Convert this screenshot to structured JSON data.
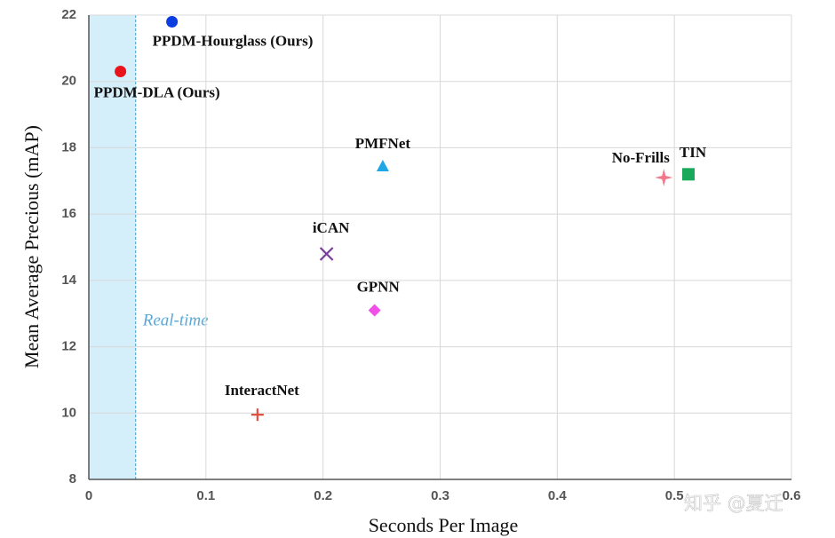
{
  "chart_data": {
    "type": "scatter",
    "xlabel": "Seconds Per Image",
    "ylabel": "Mean Average Precious (mAP)",
    "xlim": [
      0,
      0.6
    ],
    "ylim": [
      8,
      22
    ],
    "xticks": [
      0,
      0.1,
      0.2,
      0.3,
      0.4,
      0.5,
      0.6
    ],
    "yticks": [
      8,
      10,
      12,
      14,
      16,
      18,
      20,
      22
    ],
    "grid": true,
    "region": {
      "label": "Real-time",
      "x": [
        0,
        0.04
      ],
      "color": "#d4eefa"
    },
    "series": [
      {
        "name": "PPDM-Hourglass (Ours)",
        "color": "#0b3de0",
        "marker": "circle",
        "x": [
          0.071
        ],
        "values": [
          21.8
        ]
      },
      {
        "name": "PPDM-DLA (Ours)",
        "color": "#e8141c",
        "marker": "circle",
        "x": [
          0.027
        ],
        "values": [
          20.3
        ]
      },
      {
        "name": "PMFNet",
        "color": "#1ea6e6",
        "marker": "triangle",
        "x": [
          0.251
        ],
        "values": [
          17.45
        ]
      },
      {
        "name": "TIN",
        "color": "#1aa85a",
        "marker": "square",
        "x": [
          0.512
        ],
        "values": [
          17.2
        ]
      },
      {
        "name": "No-Frills",
        "color": "#f07a8a",
        "marker": "star",
        "x": [
          0.491
        ],
        "values": [
          17.1
        ]
      },
      {
        "name": "iCAN",
        "color": "#7a3d9a",
        "marker": "x",
        "x": [
          0.203
        ],
        "values": [
          14.8
        ]
      },
      {
        "name": "GPNN",
        "color": "#f050e8",
        "marker": "diamond",
        "x": [
          0.244
        ],
        "values": [
          13.1
        ]
      },
      {
        "name": "InteractNet",
        "color": "#e05040",
        "marker": "plus",
        "x": [
          0.144
        ],
        "values": [
          9.95
        ]
      }
    ],
    "watermark": "知乎 @夏迁"
  }
}
